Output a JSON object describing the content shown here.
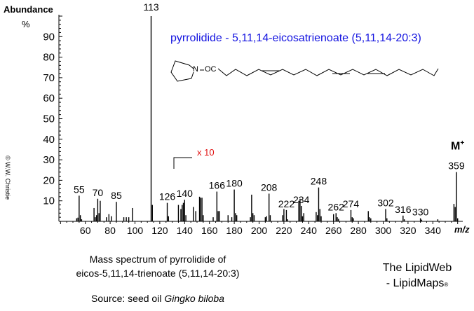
{
  "chart_data": {
    "type": "bar",
    "title": "pyrrolidide - 5,11,14-eicosatrienoate (5,11,14-20:3)",
    "xlabel": "m/z",
    "ylabel": "Abundance %",
    "xlim": [
      40,
      365
    ],
    "ylim": [
      0,
      100
    ],
    "x_ticks": [
      60,
      80,
      100,
      120,
      140,
      160,
      180,
      200,
      220,
      240,
      260,
      280,
      300,
      320,
      340
    ],
    "y_ticks": [
      10,
      20,
      30,
      40,
      50,
      60,
      70,
      80,
      90
    ],
    "magnification": {
      "label": "x 10",
      "from_mz": 130
    },
    "molecular_ion": {
      "label": "M+",
      "mz": 359
    },
    "labeled_peaks": [
      {
        "mz": 55,
        "value": 12.5
      },
      {
        "mz": 70,
        "value": 11
      },
      {
        "mz": 85,
        "value": 9.5
      },
      {
        "mz": 113,
        "value": 100
      },
      {
        "mz": 126,
        "value": 9
      },
      {
        "mz": 140,
        "value": 10.5
      },
      {
        "mz": 166,
        "value": 14.5
      },
      {
        "mz": 180,
        "value": 15.5
      },
      {
        "mz": 208,
        "value": 13.5
      },
      {
        "mz": 222,
        "value": 5.5
      },
      {
        "mz": 234,
        "value": 7.5
      },
      {
        "mz": 248,
        "value": 16.5
      },
      {
        "mz": 262,
        "value": 4
      },
      {
        "mz": 274,
        "value": 5.5
      },
      {
        "mz": 302,
        "value": 6
      },
      {
        "mz": 316,
        "value": 2.8
      },
      {
        "mz": 330,
        "value": 1.5
      },
      {
        "mz": 359,
        "value": 24
      }
    ],
    "minor_peaks": [
      {
        "mz": 53,
        "value": 1.5
      },
      {
        "mz": 54,
        "value": 1.8
      },
      {
        "mz": 56,
        "value": 3
      },
      {
        "mz": 57,
        "value": 1
      },
      {
        "mz": 67,
        "value": 6.5
      },
      {
        "mz": 68,
        "value": 2
      },
      {
        "mz": 69,
        "value": 3
      },
      {
        "mz": 71,
        "value": 4
      },
      {
        "mz": 72,
        "value": 10
      },
      {
        "mz": 77,
        "value": 2
      },
      {
        "mz": 79,
        "value": 3.5
      },
      {
        "mz": 81,
        "value": 2.5
      },
      {
        "mz": 91,
        "value": 2
      },
      {
        "mz": 93,
        "value": 2
      },
      {
        "mz": 95,
        "value": 2
      },
      {
        "mz": 98,
        "value": 6.5
      },
      {
        "mz": 114,
        "value": 8
      },
      {
        "mz": 127,
        "value": 2.5
      },
      {
        "mz": 135,
        "value": 8
      },
      {
        "mz": 137,
        "value": 6
      },
      {
        "mz": 138,
        "value": 8
      },
      {
        "mz": 139,
        "value": 9
      },
      {
        "mz": 141,
        "value": 3
      },
      {
        "mz": 147,
        "value": 7
      },
      {
        "mz": 149,
        "value": 5
      },
      {
        "mz": 152,
        "value": 12
      },
      {
        "mz": 153,
        "value": 11.5
      },
      {
        "mz": 154,
        "value": 11.5
      },
      {
        "mz": 155,
        "value": 3
      },
      {
        "mz": 163,
        "value": 2
      },
      {
        "mz": 167,
        "value": 5
      },
      {
        "mz": 168,
        "value": 5
      },
      {
        "mz": 175,
        "value": 3
      },
      {
        "mz": 178,
        "value": 2
      },
      {
        "mz": 181,
        "value": 4
      },
      {
        "mz": 182,
        "value": 3
      },
      {
        "mz": 193,
        "value": 2
      },
      {
        "mz": 194,
        "value": 13
      },
      {
        "mz": 195,
        "value": 4
      },
      {
        "mz": 196,
        "value": 3
      },
      {
        "mz": 205,
        "value": 2
      },
      {
        "mz": 206,
        "value": 2.5
      },
      {
        "mz": 209,
        "value": 3
      },
      {
        "mz": 219,
        "value": 3
      },
      {
        "mz": 220,
        "value": 6
      },
      {
        "mz": 223,
        "value": 1
      },
      {
        "mz": 232,
        "value": 10
      },
      {
        "mz": 233,
        "value": 11
      },
      {
        "mz": 235,
        "value": 2.5
      },
      {
        "mz": 236,
        "value": 4
      },
      {
        "mz": 246,
        "value": 4.5
      },
      {
        "mz": 247,
        "value": 3
      },
      {
        "mz": 249,
        "value": 6
      },
      {
        "mz": 250,
        "value": 2.5
      },
      {
        "mz": 260,
        "value": 3.5
      },
      {
        "mz": 263,
        "value": 2
      },
      {
        "mz": 264,
        "value": 1.2
      },
      {
        "mz": 275,
        "value": 2
      },
      {
        "mz": 276,
        "value": 1.5
      },
      {
        "mz": 288,
        "value": 5
      },
      {
        "mz": 289,
        "value": 2
      },
      {
        "mz": 290,
        "value": 1.5
      },
      {
        "mz": 303,
        "value": 1.5
      },
      {
        "mz": 317,
        "value": 1
      },
      {
        "mz": 331,
        "value": 0.8
      },
      {
        "mz": 344,
        "value": 1
      },
      {
        "mz": 357,
        "value": 8.5
      },
      {
        "mz": 358,
        "value": 7
      },
      {
        "mz": 360,
        "value": 1.5
      }
    ]
  },
  "axis": {
    "y_title": "Abundance",
    "y_unit": "%",
    "x_title": "m/z",
    "y_tick_labels": [
      "90",
      "80",
      "70",
      "60",
      "50",
      "40",
      "30",
      "20",
      "10"
    ],
    "x_tick_labels": [
      "60",
      "80",
      "100",
      "120",
      "140",
      "160",
      "180",
      "200",
      "220",
      "240",
      "260",
      "280",
      "300",
      "320",
      "340"
    ]
  },
  "header": {
    "compound_title": "pyrrolidide - 5,11,14-eicosatrienoate (5,11,14-20:3)",
    "structure_prefix": "N",
    "structure_link": "OC",
    "title_color": "#1414e0"
  },
  "annotations": {
    "magnification": "x 10",
    "magnification_color": "#e01010",
    "molecular_ion": "M",
    "molecular_ion_sup": "+",
    "copyright": "© W.W. Christie"
  },
  "caption": {
    "line1": "Mass spectrum of pyrrolidide of",
    "line2": "eicos-5,11,14-trienoate (5,11,14-20:3)",
    "source_label": "Source:  seed oil ",
    "source_species": "Gingko biloba"
  },
  "brand": {
    "line1": "The LipidWeb",
    "line2": "- LipidMaps",
    "mark": "®"
  }
}
